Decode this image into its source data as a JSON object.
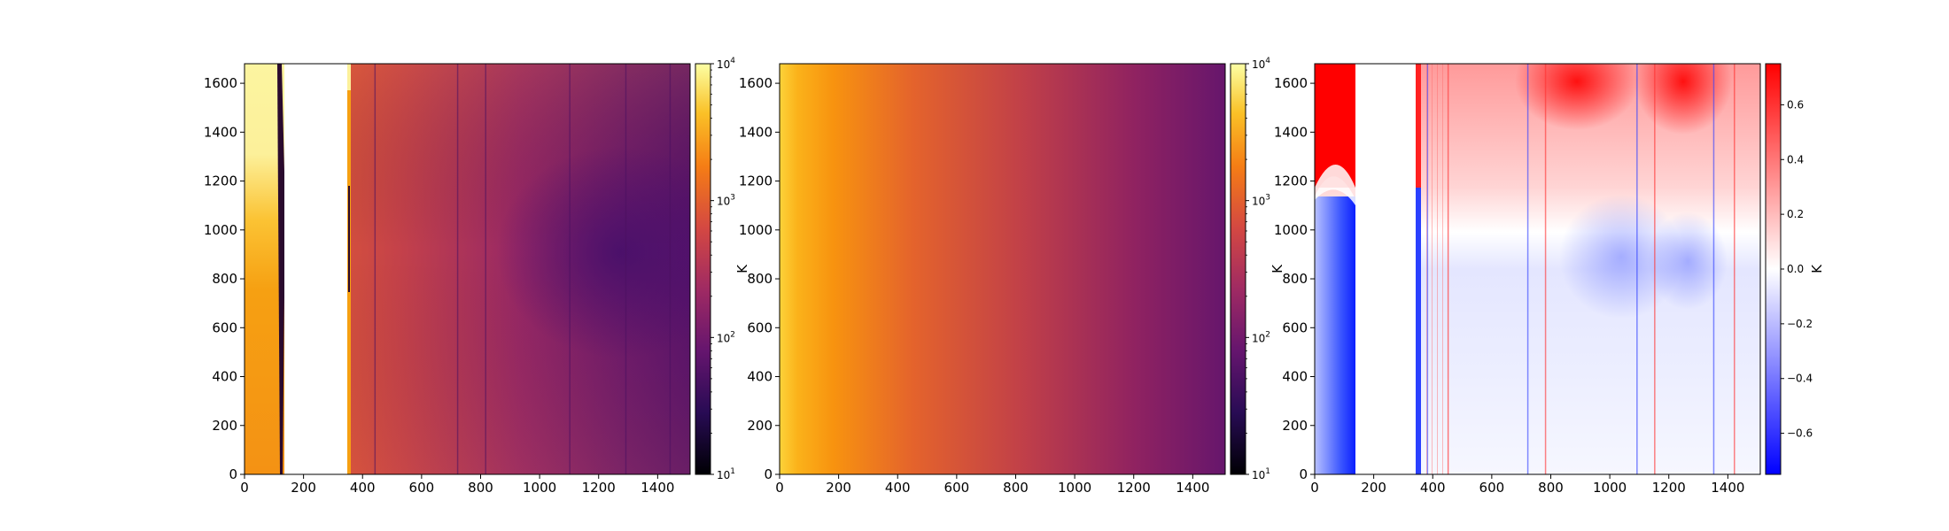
{
  "chart_data": [
    {
      "type": "heatmap",
      "x_ticks": [
        "0",
        "200",
        "400",
        "600",
        "800",
        "1000",
        "1200",
        "1400"
      ],
      "y_ticks": [
        "0",
        "200",
        "400",
        "600",
        "800",
        "1000",
        "1200",
        "1400",
        "1600"
      ],
      "xlim": [
        0,
        1510
      ],
      "ylim": [
        0,
        1680
      ],
      "colormap": "inferno",
      "color_scale": "log",
      "clim": [
        10,
        10000
      ],
      "colorbar_label": "K",
      "colorbar_ticks": [
        {
          "base": "10",
          "exp": "1"
        },
        {
          "base": "10",
          "exp": "2"
        },
        {
          "base": "10",
          "exp": "3"
        },
        {
          "base": "10",
          "exp": "4"
        }
      ],
      "blank_x_range": [
        135,
        350
      ],
      "vertical_streaks_x": [
        440,
        720,
        815,
        1100,
        1290,
        1440
      ]
    },
    {
      "type": "heatmap",
      "x_ticks": [
        "0",
        "200",
        "400",
        "600",
        "800",
        "1000",
        "1200",
        "1400"
      ],
      "y_ticks": [
        "0",
        "200",
        "400",
        "600",
        "800",
        "1000",
        "1200",
        "1400",
        "1600"
      ],
      "xlim": [
        0,
        1510
      ],
      "ylim": [
        0,
        1680
      ],
      "colormap": "inferno",
      "color_scale": "log",
      "clim": [
        10,
        10000
      ],
      "colorbar_label": "K",
      "colorbar_ticks": [
        {
          "base": "10",
          "exp": "1"
        },
        {
          "base": "10",
          "exp": "2"
        },
        {
          "base": "10",
          "exp": "3"
        },
        {
          "base": "10",
          "exp": "4"
        }
      ]
    },
    {
      "type": "heatmap",
      "x_ticks": [
        "0",
        "200",
        "400",
        "600",
        "800",
        "1000",
        "1200",
        "1400"
      ],
      "y_ticks": [
        "0",
        "200",
        "400",
        "600",
        "800",
        "1000",
        "1200",
        "1400",
        "1600"
      ],
      "xlim": [
        0,
        1510
      ],
      "ylim": [
        0,
        1680
      ],
      "colormap": "bwr",
      "color_scale": "linear",
      "clim": [
        -0.75,
        0.75
      ],
      "colorbar_label": "K",
      "colorbar_ticks": [
        "0.6",
        "0.4",
        "0.2",
        "0.0",
        "−0.2",
        "−0.4",
        "−0.6"
      ],
      "colorbar_tick_values": [
        0.6,
        0.4,
        0.2,
        0.0,
        -0.2,
        -0.4,
        -0.6
      ],
      "blank_x_range": [
        135,
        345
      ],
      "vertical_streaks_x": [
        380,
        450,
        720,
        780,
        1090,
        1150,
        1350,
        1420
      ]
    }
  ]
}
